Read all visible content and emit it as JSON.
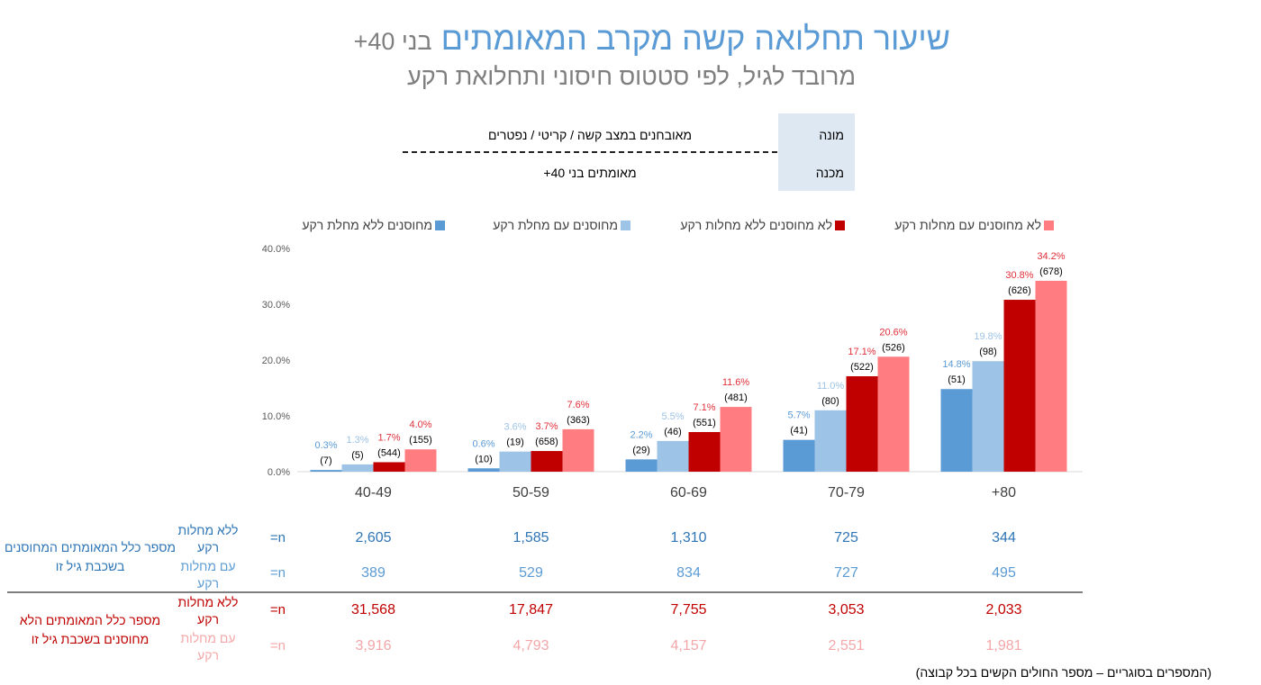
{
  "header": {
    "title_main": "שיעור תחלואה קשה מקרב המאומתים",
    "title_suffix": "בני 40+",
    "subtitle": "מרובד לגיל, לפי סטטוס חיסוני ותחלואת רקע"
  },
  "fraction": {
    "numerator_label": "מונה",
    "numerator_text": "מאובחנים במצב קשה / קריטי / נפטרים",
    "denominator_label": "מכנה",
    "denominator_text": "מאומתים בני 40+"
  },
  "colors": {
    "vacc_no_comorb": "#5b9bd5",
    "vacc_comorb": "#9dc3e6",
    "unvacc_no_comorb": "#c00000",
    "unvacc_comorb": "#ff7c80",
    "label_dark_blue": "#5b9bd5",
    "label_light_blue": "#9dc3e6",
    "label_red": "#e0303a",
    "label_pink": "#f4a6a8",
    "blue_text": "#2e75b6",
    "red_text": "#c00000"
  },
  "chart_data": {
    "type": "bar",
    "categories": [
      "40-49",
      "50-59",
      "60-69",
      "70-79",
      "+80"
    ],
    "ylim": [
      0,
      40
    ],
    "yticks": [
      "0.0%",
      "10.0%",
      "20.0%",
      "30.0%",
      "40.0%"
    ],
    "grid": false,
    "legend_position": "top",
    "series": [
      {
        "name": "מחוסנים ללא מחלת רקע",
        "values": [
          0.3,
          0.6,
          2.2,
          5.7,
          14.8
        ],
        "labels": [
          "0.3%",
          "0.6%",
          "2.2%",
          "5.7%",
          "14.8%"
        ],
        "counts": [
          "(7)",
          "(10)",
          "(29)",
          "(41)",
          "(51)"
        ]
      },
      {
        "name": "מחוסנים עם מחלת רקע",
        "values": [
          1.3,
          3.6,
          5.5,
          11.0,
          19.8
        ],
        "labels": [
          "1.3%",
          "3.6%",
          "5.5%",
          "11.0%",
          "19.8%"
        ],
        "counts": [
          "(5)",
          "(19)",
          "(46)",
          "(80)",
          "(98)"
        ]
      },
      {
        "name": "לא מחוסנים ללא מחלות רקע",
        "values": [
          1.7,
          3.7,
          7.1,
          17.1,
          30.8
        ],
        "labels": [
          "1.7%",
          "3.7%",
          "7.1%",
          "17.1%",
          "30.8%"
        ],
        "counts": [
          "(544)",
          "(658)",
          "(551)",
          "(522)",
          "(626)"
        ]
      },
      {
        "name": "לא מחוסנים עם מחלות רקע",
        "values": [
          4.0,
          7.6,
          11.6,
          20.6,
          34.2
        ],
        "labels": [
          "4.0%",
          "7.6%",
          "11.6%",
          "20.6%",
          "34.2%"
        ],
        "counts": [
          "(155)",
          "(363)",
          "(481)",
          "(526)",
          "(678)"
        ]
      }
    ]
  },
  "table": {
    "n_label": "n=",
    "vaccinated_group": "מספר כלל המאומתים המחוסנים בשכבת גיל זו",
    "unvaccinated_group": "מספר כלל המאומתים הלא מחוסנים בשכבת גיל זו",
    "no_comorb_label": "ללא מחלות רקע",
    "comorb_label": "עם מחלות רקע",
    "rows": [
      {
        "values": [
          "2,605",
          "1,585",
          "1,310",
          "725",
          "344"
        ]
      },
      {
        "values": [
          "389",
          "529",
          "834",
          "727",
          "495"
        ]
      },
      {
        "values": [
          "31,568",
          "17,847",
          "7,755",
          "3,053",
          "2,033"
        ]
      },
      {
        "values": [
          "3,916",
          "4,793",
          "4,157",
          "2,551",
          "1,981"
        ]
      }
    ]
  },
  "footnote": "(המספרים בסוגריים – מספר החולים הקשים בכל קבוצה)"
}
